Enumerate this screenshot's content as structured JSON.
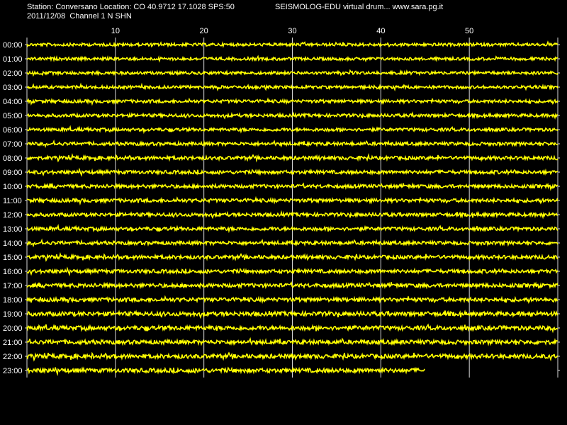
{
  "header": {
    "station_line": "Station: Conversano Location: CO 40.9712 17.1028 SPS:50",
    "date_channel_line": "2011/12/08  Channel 1 N SHN",
    "app_line": "SEISMOLOG-EDU virtual drum... www.sara.pg.it"
  },
  "chart_data": {
    "type": "line",
    "x_unit": "minutes",
    "xlim": [
      0,
      60
    ],
    "x_ticks": [
      10,
      20,
      30,
      40,
      50
    ],
    "x_tick_labels": [
      "10",
      "20",
      "30",
      "40",
      "50"
    ],
    "grid": "vertical lines every 10 minutes",
    "trace_color": "#ffff00",
    "grid_color": "#d8d8d8",
    "rows": [
      {
        "label": "00:00",
        "end_min": 60,
        "amp": 0.35
      },
      {
        "label": "01:00",
        "end_min": 60,
        "amp": 0.35
      },
      {
        "label": "02:00",
        "end_min": 60,
        "amp": 0.35
      },
      {
        "label": "03:00",
        "end_min": 60,
        "amp": 0.35
      },
      {
        "label": "04:00",
        "end_min": 60,
        "amp": 0.4
      },
      {
        "label": "05:00",
        "end_min": 60,
        "amp": 0.4
      },
      {
        "label": "06:00",
        "end_min": 60,
        "amp": 0.4
      },
      {
        "label": "07:00",
        "end_min": 60,
        "amp": 0.45
      },
      {
        "label": "08:00",
        "end_min": 60,
        "amp": 0.5
      },
      {
        "label": "09:00",
        "end_min": 60,
        "amp": 0.5
      },
      {
        "label": "10:00",
        "end_min": 60,
        "amp": 0.5
      },
      {
        "label": "11:00",
        "end_min": 60,
        "amp": 0.5
      },
      {
        "label": "12:00",
        "end_min": 60,
        "amp": 0.5
      },
      {
        "label": "13:00",
        "end_min": 60,
        "amp": 0.5
      },
      {
        "label": "14:00",
        "end_min": 60,
        "amp": 0.5
      },
      {
        "label": "15:00",
        "end_min": 60,
        "amp": 0.55
      },
      {
        "label": "16:00",
        "end_min": 60,
        "amp": 0.55
      },
      {
        "label": "17:00",
        "end_min": 60,
        "amp": 0.6
      },
      {
        "label": "18:00",
        "end_min": 60,
        "amp": 0.6
      },
      {
        "label": "19:00",
        "end_min": 60,
        "amp": 0.7
      },
      {
        "label": "20:00",
        "end_min": 60,
        "amp": 0.7
      },
      {
        "label": "21:00",
        "end_min": 60,
        "amp": 0.7
      },
      {
        "label": "22:00",
        "end_min": 60,
        "amp": 0.7
      },
      {
        "label": "23:00",
        "end_min": 45,
        "amp": 0.7
      }
    ]
  }
}
